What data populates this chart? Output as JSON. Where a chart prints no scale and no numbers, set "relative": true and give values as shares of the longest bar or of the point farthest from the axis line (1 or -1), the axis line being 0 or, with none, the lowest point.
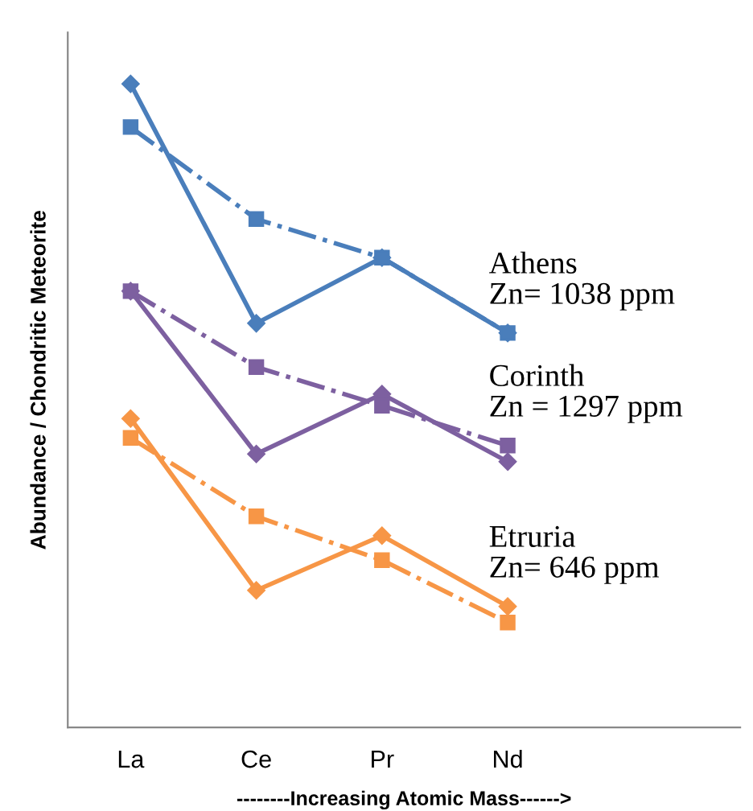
{
  "chart_data": {
    "type": "line",
    "relative": true,
    "xlabel": "--------Increasing Atomic Mass------>",
    "ylabel": "Abundance / Chondritic Meteorite",
    "categories": [
      "La",
      "Ce",
      "Pr",
      "Nd"
    ],
    "series": [
      {
        "color": "#4a7ebb",
        "marker": "diamond",
        "line_style": "solid",
        "values": [
          1,
          0.628,
          0.73,
          0.613
        ]
      },
      {
        "color": "#4a7ebb",
        "marker": "square",
        "line_style": "dashdot",
        "values": [
          0.933,
          0.79,
          0.73,
          0.613
        ]
      },
      {
        "color": "#7d60a0",
        "marker": "diamond",
        "line_style": "solid",
        "values": [
          0.678,
          0.425,
          0.518,
          0.413
        ]
      },
      {
        "color": "#7d60a0",
        "marker": "square",
        "line_style": "dashdot",
        "values": [
          0.678,
          0.56,
          0.5,
          0.438
        ]
      },
      {
        "color": "#f79646",
        "marker": "diamond",
        "line_style": "solid",
        "values": [
          0.48,
          0.213,
          0.298,
          0.188
        ]
      },
      {
        "color": "#f79646",
        "marker": "square",
        "line_style": "dashdot",
        "values": [
          0.45,
          0.328,
          0.26,
          0.163
        ]
      }
    ],
    "annotations": [
      "Athens\nZn= 1038 ppm",
      "Corinth\nZn = 1297 ppm",
      "Etruria\nZn= 646 ppm"
    ],
    "grid": false,
    "legend": false
  }
}
